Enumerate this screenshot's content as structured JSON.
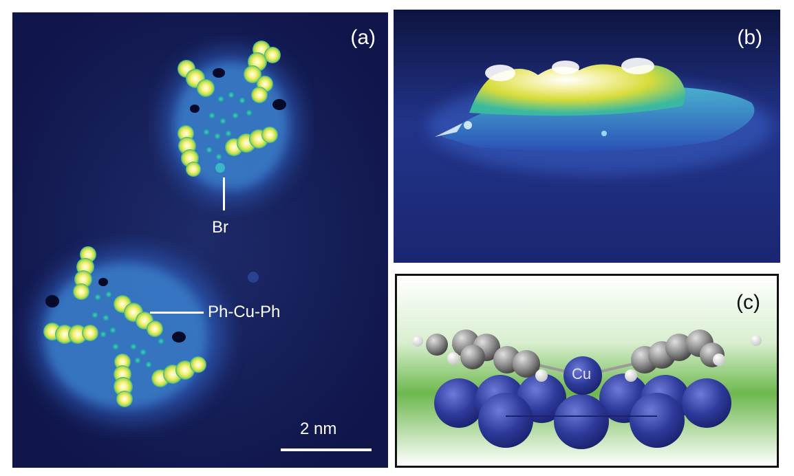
{
  "panel_a": {
    "label": "(a)",
    "annotation_br": "Br",
    "annotation_phcuph": "Ph-Cu-Ph",
    "scalebar": "2 nm"
  },
  "panel_b": {
    "label": "(b)"
  },
  "panel_c": {
    "label": "(c)",
    "atom_label": "Cu"
  },
  "colors": {
    "stm_background": "#141a4e",
    "halo": "#3a7fd0",
    "lobe": "#e8f07a",
    "cu_atom": "#2e3a9a",
    "carbon": "#8a8a8a",
    "hydrogen": "#f0f0f0",
    "substrate_gradient": "#4a9e3a"
  }
}
